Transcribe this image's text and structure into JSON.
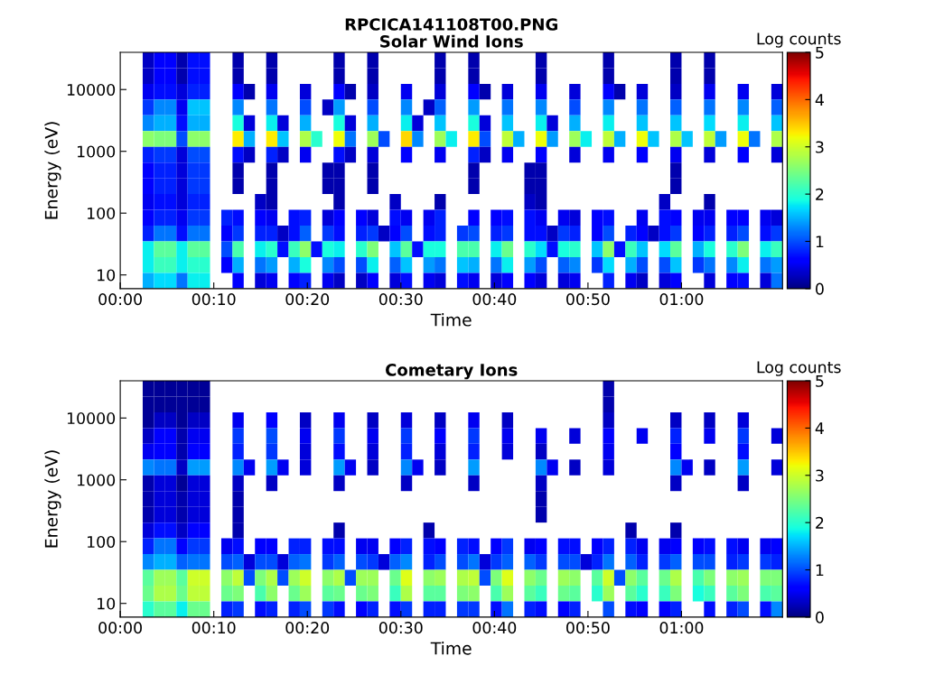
{
  "chart_data": [
    {
      "type": "heatmap",
      "title": "RPCICA141108T00.PNG",
      "subtitle": "Solar Wind Ions",
      "xlabel": "Time",
      "ylabel": "Energy (eV)",
      "clabel": "Log counts",
      "log": "y",
      "xlim": [
        0,
        1.18
      ],
      "ylim": [
        6,
        40000
      ],
      "xticks": [
        {
          "value": 0,
          "label": "00:00"
        },
        {
          "value": 0.166667,
          "label": "00:10"
        },
        {
          "value": 0.333333,
          "label": "00:20"
        },
        {
          "value": 0.5,
          "label": "00:30"
        },
        {
          "value": 0.666667,
          "label": "00:40"
        },
        {
          "value": 0.833333,
          "label": "00:50"
        },
        {
          "value": 1,
          "label": "01:00"
        }
      ],
      "yticks": [
        10,
        100,
        1000,
        10000
      ],
      "clim": [
        0,
        5
      ],
      "cticks": [
        0,
        1,
        2,
        3,
        4,
        5
      ],
      "cells": [
        [
          null,
          null,
          0.3,
          0.6,
          0.6,
          0.2,
          0.7,
          0.7,
          null,
          null,
          0.2,
          null,
          null,
          0.2,
          null,
          null,
          null,
          null,
          null,
          0.2,
          null,
          null,
          0.2,
          null,
          null,
          null,
          null,
          null,
          0.2,
          null,
          null,
          0.2,
          null,
          null,
          null,
          null,
          null,
          0.2,
          null,
          null,
          null,
          null,
          null,
          0.2,
          null,
          null,
          null,
          null,
          null,
          0.2,
          null,
          null,
          0.2,
          null,
          null,
          null,
          null,
          null,
          null
        ],
        [
          null,
          null,
          0.3,
          0.6,
          0.6,
          0.2,
          0.7,
          0.7,
          null,
          null,
          0.2,
          null,
          null,
          0.2,
          null,
          null,
          null,
          null,
          null,
          0.2,
          null,
          null,
          0.2,
          null,
          null,
          null,
          null,
          null,
          0.2,
          null,
          null,
          0.2,
          null,
          null,
          null,
          null,
          null,
          0.2,
          null,
          null,
          null,
          null,
          null,
          0.2,
          null,
          null,
          null,
          null,
          null,
          0.2,
          null,
          null,
          0.2,
          null,
          null,
          null,
          null,
          null,
          null
        ],
        [
          null,
          null,
          0.5,
          0.7,
          0.7,
          0.4,
          0.8,
          0.8,
          null,
          null,
          0.6,
          0.2,
          null,
          0.5,
          null,
          null,
          0.4,
          null,
          null,
          0.6,
          0.2,
          null,
          0.3,
          null,
          null,
          0.5,
          null,
          null,
          0.4,
          null,
          null,
          0.6,
          0.2,
          null,
          0.4,
          null,
          null,
          0.5,
          null,
          null,
          0.4,
          null,
          null,
          0.6,
          0.2,
          null,
          0.4,
          null,
          null,
          0.3,
          null,
          null,
          0.5,
          null,
          null,
          0.5,
          null,
          null,
          0.4
        ],
        [
          null,
          null,
          0.9,
          1.3,
          1.3,
          0.5,
          1.6,
          1.6,
          null,
          null,
          1.3,
          null,
          null,
          1.2,
          null,
          null,
          1.0,
          null,
          0.3,
          1.4,
          null,
          null,
          1.0,
          null,
          null,
          1.3,
          null,
          0.3,
          1.1,
          null,
          null,
          1.4,
          null,
          null,
          1.2,
          null,
          null,
          1.3,
          null,
          null,
          1.0,
          null,
          null,
          1.3,
          null,
          null,
          1.2,
          null,
          null,
          1.1,
          null,
          null,
          1.2,
          null,
          null,
          1.3,
          null,
          null,
          1.1
        ],
        [
          null,
          null,
          1.3,
          1.5,
          1.5,
          0.7,
          1.5,
          1.5,
          null,
          null,
          1.9,
          0.4,
          null,
          1.8,
          0.4,
          null,
          1.5,
          null,
          null,
          1.9,
          0.4,
          null,
          1.5,
          null,
          null,
          1.8,
          0.4,
          null,
          1.6,
          null,
          null,
          1.9,
          0.4,
          null,
          1.6,
          null,
          null,
          1.8,
          0.4,
          null,
          1.5,
          null,
          null,
          1.8,
          null,
          null,
          1.6,
          null,
          null,
          1.6,
          null,
          null,
          1.7,
          null,
          null,
          1.8,
          null,
          null,
          1.6
        ],
        [
          null,
          null,
          2.6,
          2.5,
          2.5,
          1.0,
          2.6,
          2.6,
          null,
          null,
          3.3,
          1.5,
          null,
          3.3,
          1.6,
          null,
          2.8,
          2.0,
          null,
          3.2,
          1.2,
          null,
          2.7,
          1.0,
          null,
          3.4,
          1.3,
          null,
          2.7,
          1.8,
          null,
          3.3,
          1.0,
          null,
          2.9,
          1.5,
          null,
          3.2,
          1.4,
          null,
          2.7,
          1.8,
          null,
          2.9,
          1.5,
          null,
          3.2,
          1.6,
          null,
          2.8,
          1.6,
          null,
          2.9,
          1.4,
          null,
          3.2,
          1.2,
          null,
          2.8
        ],
        [
          null,
          null,
          0.8,
          0.9,
          0.9,
          0.4,
          1.0,
          1.0,
          null,
          null,
          0.7,
          0.3,
          null,
          0.8,
          0.3,
          null,
          0.5,
          null,
          null,
          0.7,
          0.3,
          null,
          0.4,
          null,
          null,
          0.6,
          null,
          null,
          0.5,
          null,
          null,
          0.8,
          0.3,
          null,
          0.5,
          null,
          null,
          0.6,
          null,
          null,
          0.4,
          null,
          null,
          0.5,
          null,
          null,
          0.6,
          null,
          null,
          0.5,
          null,
          null,
          0.4,
          null,
          null,
          0.6,
          null,
          null,
          0.4
        ],
        [
          null,
          null,
          0.6,
          0.8,
          0.8,
          0.4,
          0.9,
          0.9,
          null,
          null,
          0.2,
          null,
          null,
          0.2,
          null,
          null,
          null,
          null,
          0.2,
          0.2,
          null,
          null,
          0.2,
          null,
          null,
          null,
          null,
          null,
          null,
          null,
          null,
          0.2,
          null,
          null,
          null,
          null,
          0.2,
          0.2,
          null,
          null,
          null,
          null,
          null,
          null,
          null,
          null,
          null,
          null,
          null,
          0.2,
          null,
          null,
          null,
          null,
          null,
          null,
          null,
          null,
          null
        ],
        [
          null,
          null,
          0.6,
          0.8,
          0.8,
          0.4,
          0.9,
          0.9,
          null,
          null,
          0.2,
          null,
          null,
          0.2,
          null,
          null,
          null,
          null,
          0.2,
          0.2,
          null,
          null,
          0.2,
          null,
          null,
          null,
          null,
          null,
          null,
          null,
          null,
          0.2,
          null,
          null,
          null,
          null,
          0.2,
          0.2,
          null,
          null,
          null,
          null,
          null,
          null,
          null,
          null,
          null,
          null,
          null,
          0.2,
          null,
          null,
          null,
          null,
          null,
          null,
          null,
          null,
          null
        ],
        [
          null,
          null,
          0.5,
          0.7,
          0.7,
          0.4,
          0.8,
          0.8,
          null,
          null,
          null,
          null,
          0.3,
          0.2,
          null,
          null,
          null,
          null,
          null,
          0.2,
          null,
          null,
          null,
          null,
          0.3,
          null,
          null,
          null,
          0.2,
          null,
          null,
          null,
          null,
          null,
          null,
          null,
          0.3,
          0.2,
          null,
          null,
          null,
          null,
          null,
          null,
          null,
          null,
          null,
          null,
          0.3,
          null,
          null,
          null,
          0.2,
          null,
          null,
          null,
          null,
          null,
          null
        ],
        [
          null,
          null,
          0.6,
          0.8,
          0.8,
          0.5,
          0.9,
          0.9,
          null,
          0.8,
          0.7,
          null,
          0.6,
          0.5,
          null,
          0.7,
          0.8,
          null,
          0.4,
          0.6,
          null,
          0.6,
          0.4,
          null,
          0.7,
          0.5,
          null,
          0.5,
          0.8,
          null,
          null,
          0.6,
          null,
          0.6,
          0.7,
          null,
          0.7,
          0.5,
          null,
          0.5,
          0.4,
          null,
          0.6,
          0.7,
          null,
          null,
          0.5,
          null,
          0.7,
          0.6,
          null,
          0.5,
          0.5,
          null,
          0.6,
          0.6,
          null,
          0.5,
          0.4
        ],
        [
          null,
          null,
          0.8,
          1.2,
          1.2,
          0.7,
          1.2,
          1.2,
          null,
          0.6,
          0.9,
          null,
          0.8,
          0.8,
          0.3,
          0.7,
          1.1,
          null,
          0.9,
          0.7,
          null,
          0.8,
          0.9,
          0.3,
          0.6,
          1.0,
          null,
          0.7,
          0.8,
          null,
          0.9,
          1.0,
          null,
          0.8,
          0.9,
          null,
          0.7,
          0.7,
          0.3,
          0.9,
          0.8,
          null,
          0.6,
          1.0,
          null,
          0.8,
          0.6,
          0.3,
          0.7,
          0.9,
          null,
          0.6,
          0.8,
          null,
          0.8,
          1.0,
          null,
          0.7,
          0.9
        ],
        [
          null,
          null,
          1.8,
          2.3,
          2.3,
          1.8,
          2.3,
          2.3,
          null,
          1.0,
          2.2,
          null,
          1.8,
          2.0,
          0.7,
          2.1,
          2.6,
          0.7,
          1.9,
          1.8,
          null,
          2.0,
          2.5,
          null,
          1.6,
          2.3,
          0.7,
          1.9,
          1.9,
          null,
          2.2,
          2.2,
          null,
          1.8,
          2.4,
          null,
          2.0,
          1.7,
          0.7,
          1.9,
          2.0,
          null,
          1.6,
          2.6,
          0.7,
          2.1,
          1.6,
          null,
          1.7,
          2.3,
          null,
          1.5,
          1.9,
          null,
          2.0,
          2.5,
          null,
          1.8,
          2.1
        ],
        [
          null,
          null,
          1.8,
          2.1,
          2.1,
          1.8,
          2.0,
          2.0,
          null,
          0.6,
          1.5,
          null,
          1.2,
          1.4,
          null,
          1.5,
          1.9,
          null,
          1.3,
          1.0,
          null,
          1.0,
          1.8,
          null,
          1.1,
          1.6,
          null,
          1.4,
          1.2,
          null,
          1.6,
          1.5,
          null,
          1.2,
          1.8,
          null,
          1.4,
          1.0,
          null,
          1.1,
          1.3,
          null,
          0.9,
          1.7,
          null,
          1.5,
          1.0,
          null,
          1.0,
          1.6,
          null,
          0.9,
          1.2,
          null,
          1.3,
          1.8,
          null,
          1.2,
          1.4
        ],
        [
          null,
          null,
          1.5,
          1.7,
          1.7,
          1.2,
          1.8,
          1.8,
          null,
          null,
          0.6,
          null,
          0.4,
          0.5,
          null,
          0.6,
          0.8,
          null,
          0.5,
          0.3,
          null,
          0.3,
          0.6,
          null,
          0.4,
          0.7,
          null,
          0.5,
          0.4,
          null,
          0.7,
          0.5,
          null,
          0.4,
          0.6,
          null,
          0.6,
          0.4,
          null,
          0.4,
          0.5,
          null,
          null,
          0.8,
          null,
          0.5,
          0.3,
          null,
          0.4,
          0.6,
          null,
          null,
          0.4,
          null,
          0.6,
          0.7,
          null,
          0.4,
          1.2
        ]
      ]
    },
    {
      "type": "heatmap",
      "title": "Cometary Ions",
      "xlabel": "Time",
      "ylabel": "Energy (eV)",
      "clabel": "Log counts",
      "log": "y",
      "xlim": [
        0,
        1.18
      ],
      "ylim": [
        6,
        40000
      ],
      "xticks": [
        {
          "value": 0,
          "label": "00:00"
        },
        {
          "value": 0.166667,
          "label": "00:10"
        },
        {
          "value": 0.333333,
          "label": "00:20"
        },
        {
          "value": 0.5,
          "label": "00:30"
        },
        {
          "value": 0.666667,
          "label": "00:40"
        },
        {
          "value": 0.833333,
          "label": "00:50"
        },
        {
          "value": 1,
          "label": "01:00"
        }
      ],
      "yticks": [
        10,
        100,
        1000,
        10000
      ],
      "clim": [
        0,
        5
      ],
      "cticks": [
        0,
        1,
        2,
        3,
        4,
        5
      ],
      "cells": [
        [
          null,
          null,
          0.1,
          0.1,
          0.1,
          0.1,
          0.1,
          0.1,
          null,
          null,
          null,
          null,
          null,
          null,
          null,
          null,
          null,
          null,
          null,
          null,
          null,
          null,
          null,
          null,
          null,
          null,
          null,
          null,
          null,
          null,
          null,
          null,
          null,
          null,
          null,
          null,
          null,
          null,
          null,
          null,
          null,
          null,
          null,
          0.2,
          null,
          null,
          null,
          null,
          null,
          null,
          null,
          null,
          null,
          null,
          null,
          null,
          null,
          null,
          null
        ],
        [
          null,
          null,
          0.1,
          0.1,
          0.1,
          0.1,
          0.1,
          0.1,
          null,
          null,
          null,
          null,
          null,
          null,
          null,
          null,
          null,
          null,
          null,
          null,
          null,
          null,
          null,
          null,
          null,
          null,
          null,
          null,
          null,
          null,
          null,
          null,
          null,
          null,
          null,
          null,
          null,
          null,
          null,
          null,
          null,
          null,
          null,
          0.2,
          null,
          null,
          null,
          null,
          null,
          null,
          null,
          null,
          null,
          null,
          null,
          null,
          null,
          null,
          null
        ],
        [
          null,
          null,
          0.1,
          0.3,
          0.3,
          0.1,
          0.3,
          0.3,
          null,
          null,
          0.5,
          null,
          null,
          0.6,
          null,
          null,
          0.3,
          null,
          null,
          0.5,
          null,
          null,
          0.3,
          null,
          null,
          0.4,
          null,
          null,
          0.3,
          null,
          null,
          0.5,
          null,
          null,
          0.3,
          null,
          null,
          null,
          null,
          null,
          null,
          null,
          null,
          0.3,
          null,
          null,
          null,
          null,
          null,
          0.3,
          null,
          null,
          0.3,
          null,
          null,
          0.4,
          null,
          null,
          null
        ],
        [
          null,
          null,
          0.3,
          0.6,
          0.6,
          0.2,
          0.5,
          0.5,
          null,
          null,
          0.9,
          null,
          null,
          1.0,
          null,
          null,
          0.5,
          null,
          null,
          0.9,
          null,
          null,
          0.5,
          null,
          null,
          0.9,
          null,
          null,
          0.6,
          null,
          null,
          0.9,
          null,
          null,
          0.5,
          null,
          null,
          0.5,
          null,
          null,
          0.4,
          null,
          null,
          0.6,
          null,
          null,
          0.5,
          null,
          null,
          0.8,
          null,
          null,
          0.5,
          null,
          null,
          0.9,
          null,
          null,
          0.4
        ],
        [
          null,
          null,
          0.5,
          0.6,
          0.6,
          0.2,
          0.6,
          0.6,
          null,
          null,
          0.8,
          null,
          null,
          0.9,
          null,
          null,
          0.4,
          null,
          null,
          0.7,
          null,
          null,
          0.4,
          null,
          null,
          0.8,
          null,
          null,
          0.4,
          null,
          null,
          0.8,
          null,
          null,
          0.4,
          null,
          null,
          0.3,
          null,
          null,
          null,
          null,
          null,
          0.5,
          null,
          null,
          null,
          null,
          null,
          0.6,
          null,
          null,
          null,
          null,
          null,
          0.7,
          null,
          null,
          null
        ],
        [
          null,
          null,
          1.3,
          1.2,
          1.2,
          0.3,
          1.4,
          1.4,
          null,
          null,
          1.3,
          0.5,
          null,
          1.4,
          0.5,
          null,
          0.4,
          null,
          null,
          1.4,
          0.5,
          null,
          0.3,
          null,
          null,
          1.3,
          0.5,
          null,
          0.3,
          null,
          null,
          1.4,
          null,
          null,
          null,
          null,
          null,
          1.3,
          0.5,
          null,
          0.3,
          null,
          null,
          0.4,
          null,
          null,
          null,
          null,
          null,
          1.3,
          0.5,
          null,
          0.3,
          null,
          null,
          1.4,
          null,
          null,
          0.4
        ],
        [
          null,
          null,
          0.2,
          0.4,
          0.4,
          0.1,
          0.4,
          0.4,
          null,
          null,
          0.3,
          null,
          null,
          0.3,
          null,
          null,
          null,
          null,
          null,
          0.3,
          null,
          null,
          null,
          null,
          null,
          0.3,
          null,
          null,
          null,
          null,
          null,
          0.3,
          null,
          null,
          null,
          null,
          null,
          0.3,
          null,
          null,
          null,
          null,
          null,
          null,
          null,
          null,
          null,
          null,
          null,
          0.3,
          null,
          null,
          null,
          null,
          null,
          0.3,
          null,
          null,
          null
        ],
        [
          null,
          null,
          0.2,
          0.4,
          0.4,
          0.2,
          0.4,
          0.4,
          null,
          null,
          0.2,
          null,
          null,
          null,
          null,
          null,
          null,
          null,
          null,
          null,
          null,
          null,
          null,
          null,
          null,
          null,
          null,
          null,
          null,
          null,
          null,
          null,
          null,
          null,
          null,
          null,
          null,
          0.2,
          null,
          null,
          null,
          null,
          null,
          null,
          null,
          null,
          null,
          null,
          null,
          null,
          null,
          null,
          null,
          null,
          null,
          null,
          null,
          null,
          null
        ],
        [
          null,
          null,
          0.2,
          0.4,
          0.4,
          0.2,
          0.4,
          0.4,
          null,
          null,
          0.2,
          null,
          null,
          null,
          null,
          null,
          null,
          null,
          null,
          null,
          null,
          null,
          null,
          null,
          null,
          null,
          null,
          null,
          null,
          null,
          null,
          null,
          null,
          null,
          null,
          null,
          null,
          0.2,
          null,
          null,
          null,
          null,
          null,
          null,
          null,
          null,
          null,
          null,
          null,
          null,
          null,
          null,
          null,
          null,
          null,
          null,
          null,
          null,
          null
        ],
        [
          null,
          null,
          0.4,
          0.7,
          0.7,
          0.3,
          0.6,
          0.6,
          null,
          null,
          0.2,
          null,
          null,
          null,
          null,
          null,
          null,
          null,
          null,
          0.2,
          null,
          null,
          null,
          null,
          null,
          null,
          null,
          0.2,
          null,
          null,
          null,
          null,
          null,
          null,
          null,
          null,
          null,
          null,
          null,
          null,
          null,
          null,
          null,
          null,
          null,
          0.2,
          null,
          null,
          null,
          0.2,
          null,
          null,
          null,
          null,
          null,
          null,
          null,
          null,
          null
        ],
        [
          null,
          null,
          0.8,
          1.2,
          1.2,
          0.6,
          0.9,
          0.9,
          null,
          0.5,
          0.7,
          null,
          0.6,
          0.6,
          null,
          0.8,
          0.8,
          null,
          0.7,
          0.7,
          null,
          0.5,
          0.5,
          null,
          0.6,
          0.8,
          null,
          0.7,
          0.6,
          null,
          0.8,
          0.7,
          null,
          0.6,
          0.9,
          null,
          0.5,
          0.6,
          null,
          0.7,
          0.7,
          null,
          0.6,
          0.8,
          null,
          0.8,
          0.5,
          null,
          0.5,
          0.6,
          null,
          0.6,
          0.7,
          null,
          0.7,
          0.5,
          null,
          0.5,
          0.6
        ],
        [
          null,
          null,
          1.3,
          1.5,
          1.5,
          1.1,
          1.2,
          1.2,
          null,
          1.0,
          1.1,
          0.4,
          1.0,
          1.0,
          0.4,
          1.1,
          1.2,
          null,
          0.9,
          1.1,
          null,
          1.0,
          0.9,
          0.4,
          1.1,
          1.3,
          null,
          0.8,
          1.0,
          null,
          1.0,
          1.2,
          0.4,
          0.9,
          1.1,
          null,
          1.1,
          0.9,
          null,
          1.0,
          1.0,
          0.4,
          0.8,
          1.2,
          null,
          1.1,
          0.8,
          null,
          0.9,
          1.1,
          null,
          1.0,
          1.0,
          null,
          0.8,
          0.9,
          null,
          0.9,
          0.8
        ],
        [
          null,
          null,
          2.3,
          2.7,
          2.7,
          2.3,
          3.0,
          3.0,
          null,
          2.6,
          2.9,
          1.0,
          2.5,
          2.8,
          1.0,
          2.7,
          3.0,
          null,
          2.6,
          2.8,
          1.0,
          2.7,
          2.7,
          null,
          2.4,
          3.1,
          null,
          2.6,
          2.7,
          null,
          2.8,
          2.9,
          1.0,
          2.5,
          3.1,
          null,
          2.6,
          2.4,
          null,
          2.7,
          2.6,
          null,
          2.3,
          3.0,
          1.0,
          2.6,
          2.3,
          null,
          2.4,
          2.8,
          null,
          2.2,
          2.5,
          null,
          2.6,
          2.7,
          null,
          2.5,
          2.5
        ],
        [
          null,
          null,
          2.4,
          2.8,
          2.8,
          2.4,
          2.9,
          2.9,
          null,
          2.4,
          2.5,
          null,
          2.2,
          2.6,
          null,
          2.4,
          2.7,
          null,
          2.3,
          2.4,
          null,
          2.4,
          2.5,
          null,
          2.1,
          2.8,
          null,
          2.3,
          2.3,
          null,
          2.5,
          2.6,
          null,
          2.2,
          2.7,
          null,
          2.3,
          2.1,
          null,
          2.4,
          2.3,
          null,
          2.0,
          2.7,
          null,
          2.3,
          2.0,
          null,
          2.1,
          2.5,
          null,
          1.9,
          2.1,
          null,
          2.3,
          2.5,
          null,
          2.2,
          2.3
        ],
        [
          null,
          null,
          2.0,
          2.3,
          2.3,
          1.8,
          2.4,
          2.4,
          null,
          0.8,
          0.9,
          null,
          0.7,
          0.8,
          null,
          0.8,
          1.0,
          null,
          0.9,
          0.7,
          null,
          0.6,
          0.8,
          null,
          0.7,
          0.9,
          null,
          0.8,
          0.8,
          null,
          0.9,
          0.9,
          null,
          0.7,
          1.2,
          null,
          0.8,
          0.7,
          null,
          0.6,
          0.8,
          null,
          null,
          1.0,
          null,
          0.7,
          0.6,
          null,
          0.6,
          0.8,
          null,
          null,
          0.7,
          null,
          0.8,
          1.0,
          null,
          0.7,
          1.3
        ]
      ]
    }
  ]
}
